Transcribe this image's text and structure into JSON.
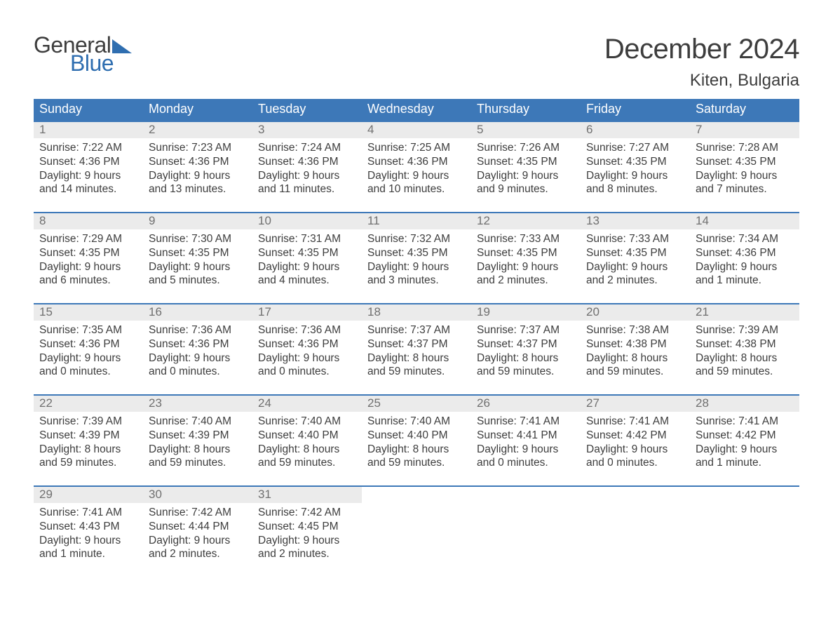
{
  "logo": {
    "word_general": "General",
    "word_blue": "Blue",
    "triangle_color": "#2f6eb0",
    "text_color_general": "#3d3d3d",
    "text_color_blue": "#2f6eb0"
  },
  "title": "December 2024",
  "location": "Kiten, Bulgaria",
  "colors": {
    "header_bg": "#3d78b8",
    "header_text": "#ffffff",
    "daynum_band_bg": "#ebebeb",
    "daynum_text": "#707070",
    "body_text": "#3d3d3d",
    "week_border": "#3d78b8",
    "page_bg": "#ffffff"
  },
  "fonts": {
    "title_size_pt": 30,
    "location_size_pt": 18,
    "dayheader_size_pt": 13,
    "daynum_size_pt": 12,
    "body_size_pt": 11
  },
  "day_headers": [
    "Sunday",
    "Monday",
    "Tuesday",
    "Wednesday",
    "Thursday",
    "Friday",
    "Saturday"
  ],
  "weeks": [
    [
      {
        "num": "1",
        "sunrise": "Sunrise: 7:22 AM",
        "sunset": "Sunset: 4:36 PM",
        "dl1": "Daylight: 9 hours",
        "dl2": "and 14 minutes."
      },
      {
        "num": "2",
        "sunrise": "Sunrise: 7:23 AM",
        "sunset": "Sunset: 4:36 PM",
        "dl1": "Daylight: 9 hours",
        "dl2": "and 13 minutes."
      },
      {
        "num": "3",
        "sunrise": "Sunrise: 7:24 AM",
        "sunset": "Sunset: 4:36 PM",
        "dl1": "Daylight: 9 hours",
        "dl2": "and 11 minutes."
      },
      {
        "num": "4",
        "sunrise": "Sunrise: 7:25 AM",
        "sunset": "Sunset: 4:36 PM",
        "dl1": "Daylight: 9 hours",
        "dl2": "and 10 minutes."
      },
      {
        "num": "5",
        "sunrise": "Sunrise: 7:26 AM",
        "sunset": "Sunset: 4:35 PM",
        "dl1": "Daylight: 9 hours",
        "dl2": "and 9 minutes."
      },
      {
        "num": "6",
        "sunrise": "Sunrise: 7:27 AM",
        "sunset": "Sunset: 4:35 PM",
        "dl1": "Daylight: 9 hours",
        "dl2": "and 8 minutes."
      },
      {
        "num": "7",
        "sunrise": "Sunrise: 7:28 AM",
        "sunset": "Sunset: 4:35 PM",
        "dl1": "Daylight: 9 hours",
        "dl2": "and 7 minutes."
      }
    ],
    [
      {
        "num": "8",
        "sunrise": "Sunrise: 7:29 AM",
        "sunset": "Sunset: 4:35 PM",
        "dl1": "Daylight: 9 hours",
        "dl2": "and 6 minutes."
      },
      {
        "num": "9",
        "sunrise": "Sunrise: 7:30 AM",
        "sunset": "Sunset: 4:35 PM",
        "dl1": "Daylight: 9 hours",
        "dl2": "and 5 minutes."
      },
      {
        "num": "10",
        "sunrise": "Sunrise: 7:31 AM",
        "sunset": "Sunset: 4:35 PM",
        "dl1": "Daylight: 9 hours",
        "dl2": "and 4 minutes."
      },
      {
        "num": "11",
        "sunrise": "Sunrise: 7:32 AM",
        "sunset": "Sunset: 4:35 PM",
        "dl1": "Daylight: 9 hours",
        "dl2": "and 3 minutes."
      },
      {
        "num": "12",
        "sunrise": "Sunrise: 7:33 AM",
        "sunset": "Sunset: 4:35 PM",
        "dl1": "Daylight: 9 hours",
        "dl2": "and 2 minutes."
      },
      {
        "num": "13",
        "sunrise": "Sunrise: 7:33 AM",
        "sunset": "Sunset: 4:35 PM",
        "dl1": "Daylight: 9 hours",
        "dl2": "and 2 minutes."
      },
      {
        "num": "14",
        "sunrise": "Sunrise: 7:34 AM",
        "sunset": "Sunset: 4:36 PM",
        "dl1": "Daylight: 9 hours",
        "dl2": "and 1 minute."
      }
    ],
    [
      {
        "num": "15",
        "sunrise": "Sunrise: 7:35 AM",
        "sunset": "Sunset: 4:36 PM",
        "dl1": "Daylight: 9 hours",
        "dl2": "and 0 minutes."
      },
      {
        "num": "16",
        "sunrise": "Sunrise: 7:36 AM",
        "sunset": "Sunset: 4:36 PM",
        "dl1": "Daylight: 9 hours",
        "dl2": "and 0 minutes."
      },
      {
        "num": "17",
        "sunrise": "Sunrise: 7:36 AM",
        "sunset": "Sunset: 4:36 PM",
        "dl1": "Daylight: 9 hours",
        "dl2": "and 0 minutes."
      },
      {
        "num": "18",
        "sunrise": "Sunrise: 7:37 AM",
        "sunset": "Sunset: 4:37 PM",
        "dl1": "Daylight: 8 hours",
        "dl2": "and 59 minutes."
      },
      {
        "num": "19",
        "sunrise": "Sunrise: 7:37 AM",
        "sunset": "Sunset: 4:37 PM",
        "dl1": "Daylight: 8 hours",
        "dl2": "and 59 minutes."
      },
      {
        "num": "20",
        "sunrise": "Sunrise: 7:38 AM",
        "sunset": "Sunset: 4:38 PM",
        "dl1": "Daylight: 8 hours",
        "dl2": "and 59 minutes."
      },
      {
        "num": "21",
        "sunrise": "Sunrise: 7:39 AM",
        "sunset": "Sunset: 4:38 PM",
        "dl1": "Daylight: 8 hours",
        "dl2": "and 59 minutes."
      }
    ],
    [
      {
        "num": "22",
        "sunrise": "Sunrise: 7:39 AM",
        "sunset": "Sunset: 4:39 PM",
        "dl1": "Daylight: 8 hours",
        "dl2": "and 59 minutes."
      },
      {
        "num": "23",
        "sunrise": "Sunrise: 7:40 AM",
        "sunset": "Sunset: 4:39 PM",
        "dl1": "Daylight: 8 hours",
        "dl2": "and 59 minutes."
      },
      {
        "num": "24",
        "sunrise": "Sunrise: 7:40 AM",
        "sunset": "Sunset: 4:40 PM",
        "dl1": "Daylight: 8 hours",
        "dl2": "and 59 minutes."
      },
      {
        "num": "25",
        "sunrise": "Sunrise: 7:40 AM",
        "sunset": "Sunset: 4:40 PM",
        "dl1": "Daylight: 8 hours",
        "dl2": "and 59 minutes."
      },
      {
        "num": "26",
        "sunrise": "Sunrise: 7:41 AM",
        "sunset": "Sunset: 4:41 PM",
        "dl1": "Daylight: 9 hours",
        "dl2": "and 0 minutes."
      },
      {
        "num": "27",
        "sunrise": "Sunrise: 7:41 AM",
        "sunset": "Sunset: 4:42 PM",
        "dl1": "Daylight: 9 hours",
        "dl2": "and 0 minutes."
      },
      {
        "num": "28",
        "sunrise": "Sunrise: 7:41 AM",
        "sunset": "Sunset: 4:42 PM",
        "dl1": "Daylight: 9 hours",
        "dl2": "and 1 minute."
      }
    ],
    [
      {
        "num": "29",
        "sunrise": "Sunrise: 7:41 AM",
        "sunset": "Sunset: 4:43 PM",
        "dl1": "Daylight: 9 hours",
        "dl2": "and 1 minute."
      },
      {
        "num": "30",
        "sunrise": "Sunrise: 7:42 AM",
        "sunset": "Sunset: 4:44 PM",
        "dl1": "Daylight: 9 hours",
        "dl2": "and 2 minutes."
      },
      {
        "num": "31",
        "sunrise": "Sunrise: 7:42 AM",
        "sunset": "Sunset: 4:45 PM",
        "dl1": "Daylight: 9 hours",
        "dl2": "and 2 minutes."
      },
      {
        "empty": true
      },
      {
        "empty": true
      },
      {
        "empty": true
      },
      {
        "empty": true
      }
    ]
  ]
}
